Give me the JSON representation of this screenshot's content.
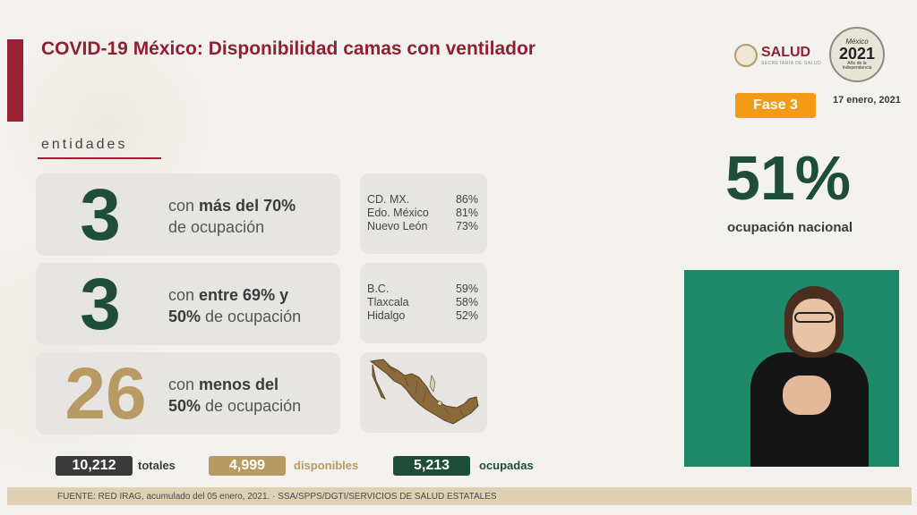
{
  "header": {
    "title": "COVID-19 México: Disponibilidad camas con ventilador",
    "salud_logo": "SALUD",
    "salud_sub": "SECRETARÍA DE SALUD",
    "year_logo": {
      "mexico": "México",
      "year": "2021",
      "sub": "Año de la Independencia"
    },
    "fase": "Fase 3",
    "fecha": "17 enero, 2021"
  },
  "section_label": "entidades",
  "rows": [
    {
      "count": "3",
      "text_pre": "con ",
      "text_bold": "más del 70%",
      "text_post": "de ocupación",
      "states": [
        {
          "name": "CD. MX.",
          "value": "86%"
        },
        {
          "name": "Edo. México",
          "value": "81%"
        },
        {
          "name": "Nuevo León",
          "value": "73%"
        }
      ]
    },
    {
      "count": "3",
      "text_pre": "con ",
      "text_bold": "entre 69% y",
      "text_bold2": "50%",
      "text_post": " de ocupación",
      "states": [
        {
          "name": "B.C.",
          "value": "59%"
        },
        {
          "name": "Tlaxcala",
          "value": "58%"
        },
        {
          "name": "Hidalgo",
          "value": "52%"
        }
      ]
    },
    {
      "count": "26",
      "text_pre": "con ",
      "text_bold": "menos del",
      "text_bold2": "50%",
      "text_post": " de ocupación"
    }
  ],
  "kpi": {
    "value": "51%",
    "label": "ocupación nacional"
  },
  "totals": [
    {
      "value": "10,212",
      "label": "totales",
      "color": "#3a3a3a"
    },
    {
      "value": "4,999",
      "label": "disponibles",
      "color": "#b89a63"
    },
    {
      "value": "5,213",
      "label": "ocupadas",
      "color": "#1e4d3a"
    }
  ],
  "footer": "FUENTE: RED IRAG, acumulado del 05 enero, 2021.  ·  SSA/SPPS/DGTI/SERVICIOS DE SALUD ESTATALES",
  "colors": {
    "accent_red": "#9b2135",
    "green": "#1e4d3a",
    "orange": "#f39a17",
    "gold": "#b89a63"
  }
}
